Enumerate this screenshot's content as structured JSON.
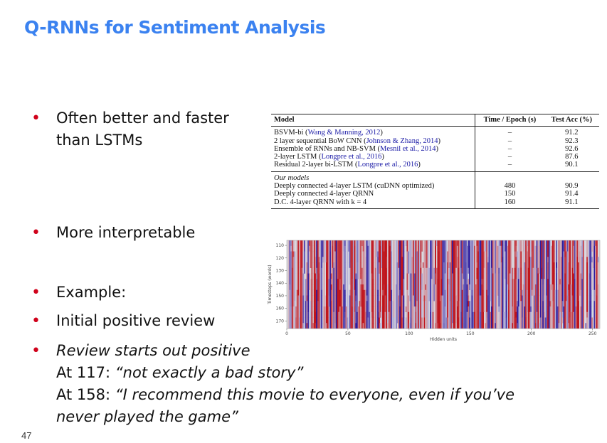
{
  "slide": {
    "title": "Q-RNNs for Sentiment Analysis",
    "page_number": "47",
    "bullet_color": "#d0021b",
    "title_color": "#3b82f0"
  },
  "bullets": [
    {
      "lines": [
        "Often better and faster",
        "than LSTMs"
      ]
    },
    {
      "lines": [
        "More interpretable"
      ]
    },
    {
      "lines": [
        "Example:"
      ]
    },
    {
      "lines": [
        "Initial positive review"
      ]
    },
    {
      "lines": [
        "Review starts out positive",
        "At 117: “not exactly a bad story”",
        "At 158: “I recommend this movie to everyone, even if you’ve",
        "never played the game”"
      ]
    }
  ],
  "bullet_prefixes": [
    "At 117: ",
    "At 158: "
  ],
  "table": {
    "headers": {
      "model": "Model",
      "time": "Time / Epoch (s)",
      "acc": "Test Acc (%)"
    },
    "baseline_rows": [
      {
        "model": "BSVM-bi",
        "cite": "Wang & Manning, 2012",
        "time": "–",
        "acc": "91.2"
      },
      {
        "model": "2 layer sequential BoW CNN",
        "cite": "Johnson & Zhang, 2014",
        "time": "–",
        "acc": "92.3"
      },
      {
        "model": "Ensemble of RNNs and NB-SVM",
        "cite": "Mesnil et al., 2014",
        "time": "–",
        "acc": "92.6"
      },
      {
        "model": "2-layer LSTM",
        "cite": "Longpre et al., 2016",
        "time": "–",
        "acc": "87.6"
      },
      {
        "model": "Residual 2-layer bi-LSTM",
        "cite": "Longpre et al., 2016",
        "time": "–",
        "acc": "90.1"
      }
    ],
    "our_models_label": "Our models",
    "our_rows": [
      {
        "model": "Deeply connected 4-layer LSTM (cuDNN optimized)",
        "time": "480",
        "acc": "90.9"
      },
      {
        "model": "Deeply connected 4-layer QRNN",
        "time": "150",
        "acc": "91.4"
      },
      {
        "model": "D.C. 4-layer QRNN with k = 4",
        "time": "160",
        "acc": "91.1"
      }
    ]
  },
  "heatmap": {
    "xlabel": "Hidden units",
    "ylabel": "Timesteps (words)",
    "xticks": [
      "0",
      "50",
      "100",
      "150",
      "200",
      "250"
    ],
    "yticks": [
      "110",
      "120",
      "130",
      "140",
      "150",
      "160",
      "170"
    ],
    "colormap": [
      "#2b1a9e",
      "#d7d7e3",
      "#c0141b"
    ]
  }
}
